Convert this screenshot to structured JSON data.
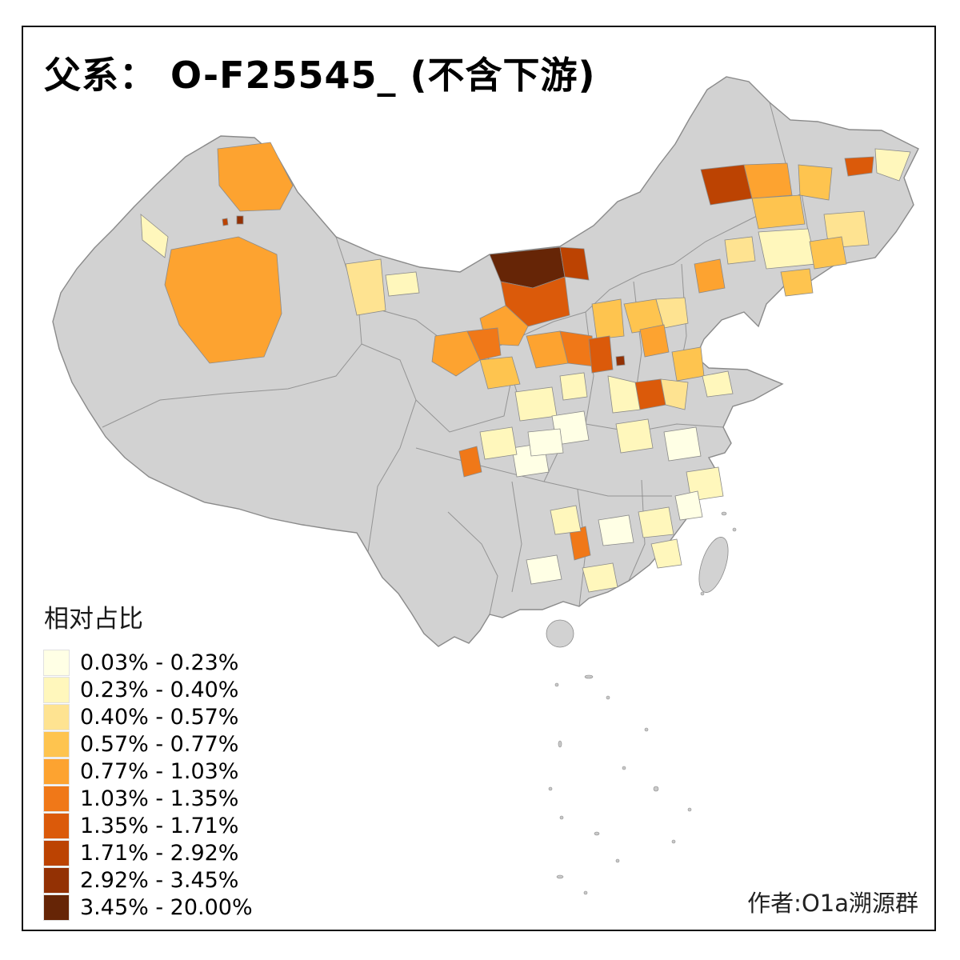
{
  "title": "父系： O-F25545_ (不含下游)",
  "legend": {
    "title": "相对占比",
    "bins": [
      {
        "label": "0.03% - 0.23%",
        "color": "#FFFFE5"
      },
      {
        "label": "0.23% - 0.40%",
        "color": "#FFF7BC"
      },
      {
        "label": "0.40% - 0.57%",
        "color": "#FEE391"
      },
      {
        "label": "0.57% - 0.77%",
        "color": "#FEC44F"
      },
      {
        "label": "0.77% - 1.03%",
        "color": "#FDA330"
      },
      {
        "label": "1.03% - 1.35%",
        "color": "#F07818"
      },
      {
        "label": "1.35% - 1.71%",
        "color": "#DB5A0A"
      },
      {
        "label": "1.71% - 2.92%",
        "color": "#BC4302"
      },
      {
        "label": "2.92% - 3.45%",
        "color": "#933104"
      },
      {
        "label": "3.45% - 20.00%",
        "color": "#662506"
      }
    ]
  },
  "attribution": "作者:O1a溯源群",
  "map": {
    "name": "china-prefecture-choropleth",
    "no_data_color": "#d2d2d2",
    "boundary_color": "#8a8a8a",
    "background_color": "#ffffff"
  }
}
